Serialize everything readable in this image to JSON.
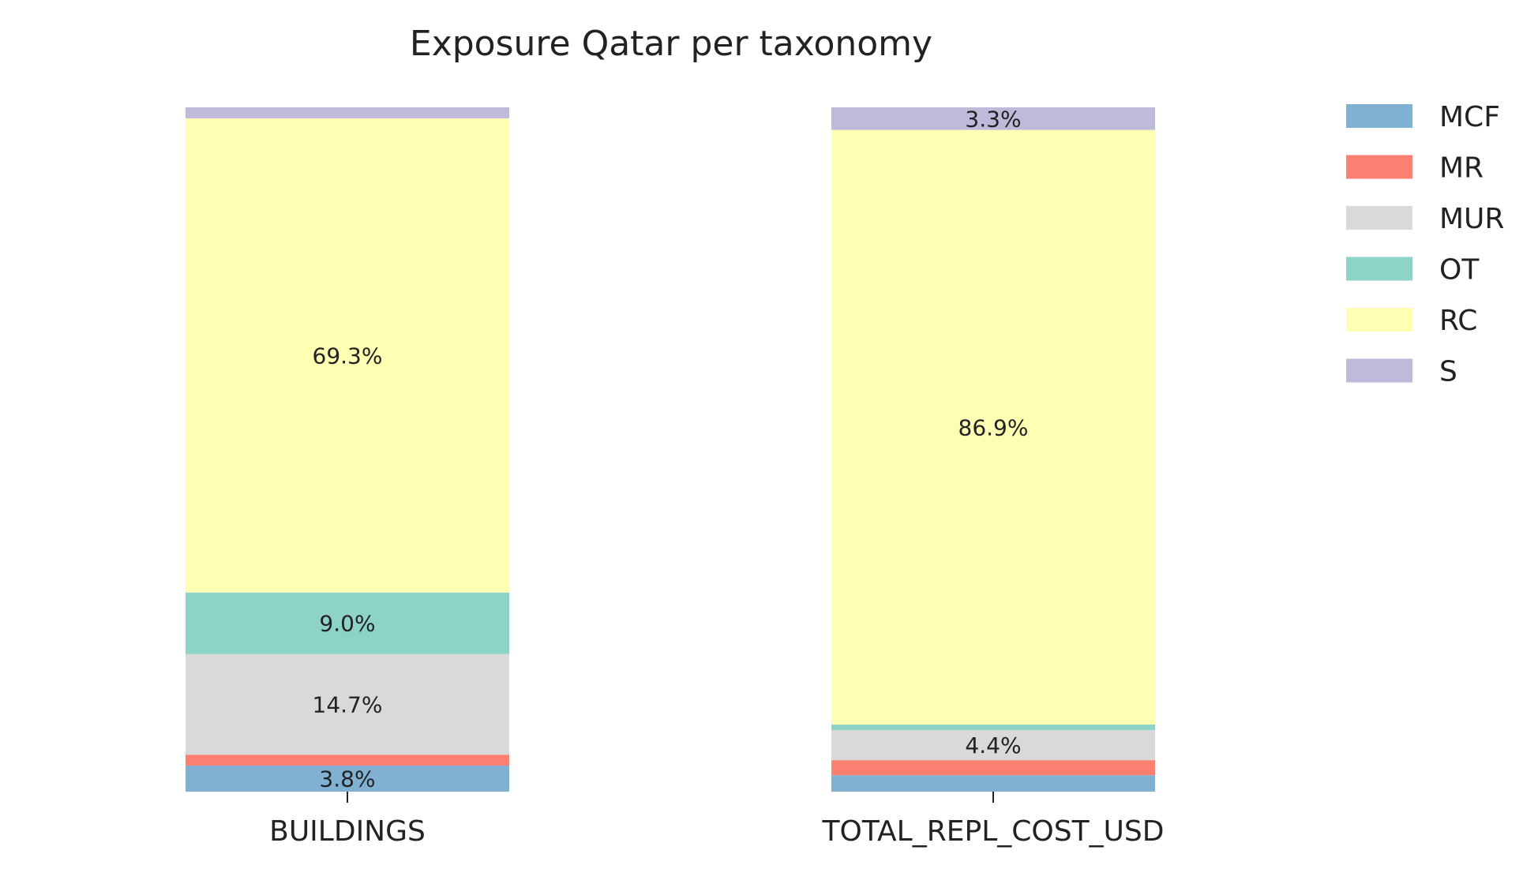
{
  "chart_data": {
    "type": "bar",
    "stacked": true,
    "normalized_percent": true,
    "title": "Exposure Qatar per taxonomy",
    "xlabel": "",
    "ylabel": "",
    "ylim": [
      0,
      100
    ],
    "grid": false,
    "legend_position": "top-right",
    "categories": [
      "BUILDINGS",
      "TOTAL_REPL_COST_USD"
    ],
    "series": [
      {
        "name": "MCF",
        "color": "#80b1d3",
        "values": [
          3.8,
          2.4
        ],
        "labels": [
          "3.8%",
          ""
        ]
      },
      {
        "name": "MR",
        "color": "#fb8072",
        "values": [
          1.6,
          2.2
        ],
        "labels": [
          "",
          ""
        ]
      },
      {
        "name": "MUR",
        "color": "#d9d9d9",
        "values": [
          14.7,
          4.4
        ],
        "labels": [
          "14.7%",
          "4.4%"
        ]
      },
      {
        "name": "OT",
        "color": "#8dd3c7",
        "values": [
          9.0,
          0.8
        ],
        "labels": [
          "9.0%",
          ""
        ]
      },
      {
        "name": "RC",
        "color": "#ffffb3",
        "values": [
          69.3,
          86.9
        ],
        "labels": [
          "69.3%",
          "86.9%"
        ]
      },
      {
        "name": "S",
        "color": "#bebada",
        "values": [
          1.6,
          3.3
        ],
        "labels": [
          "",
          "3.3%"
        ]
      }
    ]
  }
}
